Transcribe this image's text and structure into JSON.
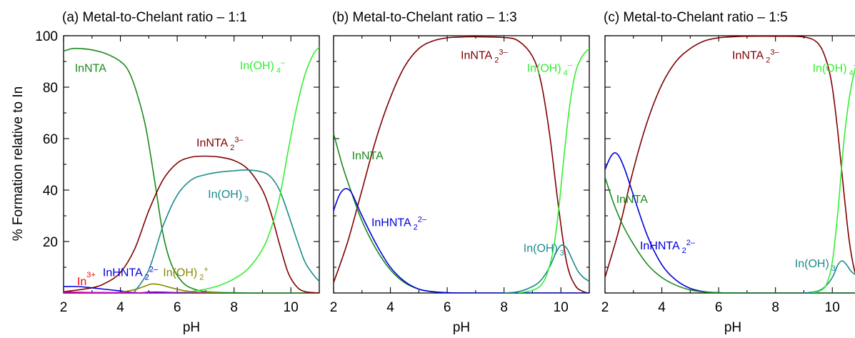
{
  "figure": {
    "ylabel": "% Formation relative to In"
  },
  "chart_data": [
    {
      "type": "line",
      "title": "(a) Metal-to-Chelant ratio – 1:1",
      "xlabel": "pH",
      "ylabel": "% Formation relative to In",
      "xlim": [
        2,
        11
      ],
      "ylim": [
        0,
        100
      ],
      "xticks": [
        2,
        4,
        6,
        8,
        10
      ],
      "yticks": [
        20,
        40,
        60,
        80,
        100
      ],
      "grid": false,
      "series": [
        {
          "name": "InNTA",
          "color": "#1a8a1a",
          "x": [
            2.0,
            2.3,
            2.6,
            3.0,
            3.5,
            4.0,
            4.3,
            4.6,
            4.9,
            5.2,
            5.5,
            5.8,
            6.2,
            6.6,
            7.0,
            7.5,
            8.0,
            8.5,
            9.0,
            10.0,
            11.0
          ],
          "y": [
            94,
            95,
            95,
            94.5,
            93,
            90,
            86,
            77,
            64,
            44,
            23,
            11,
            4,
            1.5,
            0.5,
            0.2,
            0.1,
            0,
            0,
            0,
            0
          ]
        },
        {
          "name": "InNTA₂³⁻",
          "color": "#800000",
          "x": [
            2.0,
            3.0,
            3.5,
            4.0,
            4.5,
            5.0,
            5.5,
            6.0,
            6.5,
            7.0,
            7.5,
            8.0,
            8.5,
            9.0,
            9.3,
            9.6,
            9.9,
            10.2,
            10.5,
            11.0
          ],
          "y": [
            0.5,
            2,
            4,
            8,
            17,
            32,
            44,
            50.5,
            52.8,
            53.2,
            52.8,
            51.5,
            48,
            40,
            31,
            19,
            8,
            2.5,
            0.5,
            0
          ]
        },
        {
          "name": "In(OH)₃",
          "color": "#1a8a8a",
          "x": [
            4.5,
            5.0,
            5.5,
            6.0,
            6.5,
            7.0,
            7.5,
            8.0,
            8.5,
            9.0,
            9.3,
            9.6,
            9.9,
            10.2,
            10.5,
            10.8,
            11.0
          ],
          "y": [
            0.5,
            9,
            26,
            38,
            44,
            46,
            47,
            47.5,
            47.8,
            47,
            45,
            40,
            31,
            21,
            12,
            7,
            4.5
          ]
        },
        {
          "name": "In(OH)₄⁻",
          "color": "#33ee33",
          "x": [
            5.5,
            6.0,
            6.5,
            7.0,
            7.5,
            8.0,
            8.5,
            9.0,
            9.3,
            9.6,
            9.9,
            10.2,
            10.5,
            10.8,
            11.0
          ],
          "y": [
            0,
            0.2,
            0.6,
            1.5,
            3,
            5.5,
            9.5,
            17,
            25,
            37,
            55,
            72,
            85,
            93,
            95.5
          ]
        },
        {
          "name": "In³⁺",
          "color": "#ff0000",
          "x": [
            2.0,
            2.5,
            3.0,
            3.5,
            4.0,
            4.5,
            5.0
          ],
          "y": [
            0.5,
            0.3,
            0.2,
            0.1,
            0,
            0,
            0
          ]
        },
        {
          "name": "InHNTA₂²⁻",
          "color": "#0000dd",
          "x": [
            2.0,
            2.5,
            3.0,
            3.5,
            4.0,
            4.3,
            4.7,
            5.0,
            5.5,
            6.0,
            6.5,
            7.0
          ],
          "y": [
            2.5,
            2.5,
            2.0,
            1.4,
            0.8,
            0.3,
            0.05,
            0.3,
            0.3,
            0.1,
            0,
            0
          ]
        },
        {
          "name": "In(OH)₂⁺",
          "color": "#888800",
          "x": [
            3.5,
            4.0,
            4.5,
            4.8,
            5.1,
            5.4,
            5.8,
            6.2,
            6.6,
            7.0,
            7.5
          ],
          "y": [
            0,
            0.3,
            1.3,
            2.4,
            3.5,
            3.2,
            2.0,
            1.0,
            0.4,
            0.1,
            0
          ]
        },
        {
          "name": "",
          "color": "#cc00cc",
          "x": [
            2.0,
            3.0,
            4.0,
            5.0,
            6.0,
            7.0
          ],
          "y": [
            0.3,
            0.2,
            0.1,
            0.05,
            0,
            0
          ]
        }
      ],
      "annotations": [
        {
          "series": "InNTA",
          "color": "#1a8a1a",
          "parts": [
            [
              "InNTA",
              ""
            ]
          ],
          "x": 2.95,
          "y": 86
        },
        {
          "series": "In(OH)₄⁻",
          "color": "#33ee33",
          "parts": [
            [
              "In(OH)",
              ""
            ],
            [
              "4",
              "sub"
            ],
            [
              "–",
              "sup"
            ]
          ],
          "x": 9.0,
          "y": 87
        },
        {
          "series": "InNTA₂³⁻",
          "color": "#800000",
          "parts": [
            [
              "InNTA",
              ""
            ],
            [
              "2",
              "sub"
            ],
            [
              "3–",
              "sup"
            ]
          ],
          "x": 7.5,
          "y": 57
        },
        {
          "series": "In(OH)₃",
          "color": "#1a8a8a",
          "parts": [
            [
              "In(OH)",
              ""
            ],
            [
              "3",
              "sub"
            ]
          ],
          "x": 7.8,
          "y": 37
        },
        {
          "series": "In³⁺",
          "color": "#ff0000",
          "parts": [
            [
              "In",
              ""
            ],
            [
              "3+",
              "sup"
            ]
          ],
          "x": 2.8,
          "y": 3
        },
        {
          "series": "InHNTA₂²⁻",
          "color": "#0000dd",
          "parts": [
            [
              "InHNTA",
              ""
            ],
            [
              "2",
              "sub"
            ],
            [
              "2–",
              "sup"
            ]
          ],
          "x": 4.35,
          "y": 6.5
        },
        {
          "series": "In(OH)₂⁺",
          "color": "#888800",
          "parts": [
            [
              "In(OH)",
              ""
            ],
            [
              "2",
              "sub"
            ],
            [
              "+",
              "sup"
            ]
          ],
          "x": 6.3,
          "y": 6.5
        }
      ]
    },
    {
      "type": "line",
      "title": "(b) Metal-to-Chelant ratio – 1:3",
      "xlabel": "pH",
      "ylabel": "",
      "xlim": [
        2,
        11
      ],
      "ylim": [
        0,
        100
      ],
      "xticks": [
        2,
        4,
        6,
        8,
        10
      ],
      "yticks": [
        20,
        40,
        60,
        80,
        100
      ],
      "grid": false,
      "series": [
        {
          "name": "InNTA₂³⁻",
          "color": "#800000",
          "x": [
            2.0,
            2.5,
            3.0,
            3.5,
            4.0,
            4.5,
            5.0,
            5.5,
            6.0,
            6.5,
            7.0,
            8.0,
            8.5,
            9.0,
            9.3,
            9.6,
            9.9,
            10.2,
            10.5,
            10.8,
            11.0
          ],
          "y": [
            4,
            20,
            40,
            60,
            76,
            88,
            95,
            98,
            99.2,
            99.5,
            99.6,
            99.3,
            98,
            92,
            82,
            62,
            35,
            12,
            3,
            0.5,
            0
          ]
        },
        {
          "name": "InNTA",
          "color": "#1a8a1a",
          "x": [
            2.0,
            2.3,
            2.6,
            3.0,
            3.5,
            4.0,
            4.5,
            5.0,
            5.5,
            6.0,
            7.0,
            11.0
          ],
          "y": [
            62,
            50,
            40,
            28,
            17,
            9,
            4,
            1.5,
            0.5,
            0.1,
            0,
            0
          ]
        },
        {
          "name": "InHNTA₂²⁻",
          "color": "#0000dd",
          "x": [
            2.0,
            2.2,
            2.4,
            2.6,
            2.8,
            3.0,
            3.5,
            4.0,
            4.5,
            5.0,
            5.5,
            6.0,
            7.0,
            11.0
          ],
          "y": [
            32,
            38,
            40.5,
            39.5,
            35,
            30,
            19,
            10,
            4.5,
            1.5,
            0.5,
            0.1,
            0,
            0
          ]
        },
        {
          "name": "In(OH)₃",
          "color": "#1a8a8a",
          "x": [
            8.0,
            8.5,
            9.0,
            9.3,
            9.6,
            9.8,
            10.0,
            10.2,
            10.4,
            10.6,
            10.8,
            11.0
          ],
          "y": [
            0,
            0.5,
            2.5,
            5,
            10,
            15,
            18.5,
            17.5,
            13,
            8.5,
            6,
            4.5
          ]
        },
        {
          "name": "In(OH)₄⁻",
          "color": "#33ee33",
          "x": [
            8.5,
            9.0,
            9.3,
            9.5,
            9.7,
            9.9,
            10.1,
            10.3,
            10.5,
            10.7,
            10.9,
            11.0
          ],
          "y": [
            0,
            1,
            3,
            7,
            15,
            30,
            52,
            72,
            85,
            91,
            94,
            95
          ]
        }
      ],
      "annotations": [
        {
          "series": "InNTA₂³⁻",
          "color": "#800000",
          "parts": [
            [
              "InNTA",
              ""
            ],
            [
              "2",
              "sub"
            ],
            [
              "3–",
              "sup"
            ]
          ],
          "x": 7.3,
          "y": 91
        },
        {
          "series": "In(OH)₄⁻",
          "color": "#33ee33",
          "parts": [
            [
              "In(OH)",
              ""
            ],
            [
              "4",
              "sub"
            ],
            [
              "–",
              "sup"
            ]
          ],
          "x": 9.6,
          "y": 86
        },
        {
          "series": "InNTA",
          "color": "#1a8a1a",
          "parts": [
            [
              "InNTA",
              ""
            ]
          ],
          "x": 3.2,
          "y": 52
        },
        {
          "series": "InHNTA₂²⁻",
          "color": "#0000dd",
          "parts": [
            [
              "InHNTA",
              ""
            ],
            [
              "2",
              "sub"
            ],
            [
              "2–",
              "sup"
            ]
          ],
          "x": 4.3,
          "y": 26
        },
        {
          "series": "In(OH)₃",
          "color": "#1a8a8a",
          "parts": [
            [
              "In(OH)",
              ""
            ],
            [
              "3",
              "sub"
            ]
          ],
          "x": 9.4,
          "y": 16
        }
      ]
    },
    {
      "type": "line",
      "title": "(c) Metal-to-Chelant ratio – 1:5",
      "xlabel": "pH",
      "ylabel": "",
      "xlim": [
        2,
        11
      ],
      "ylim": [
        0,
        100
      ],
      "xticks": [
        2,
        4,
        6,
        8,
        10
      ],
      "yticks": [
        20,
        40,
        60,
        80,
        100
      ],
      "grid": false,
      "series": [
        {
          "name": "InNTA₂³⁻",
          "color": "#800000",
          "x": [
            2.0,
            2.5,
            3.0,
            3.5,
            4.0,
            4.5,
            5.0,
            5.5,
            6.0,
            6.5,
            7.0,
            8.0,
            9.0,
            9.5,
            9.8,
            10.0,
            10.2,
            10.4,
            10.6,
            10.8,
            11.0
          ],
          "y": [
            6,
            25,
            48,
            67,
            81,
            90,
            95,
            98,
            99.2,
            99.6,
            99.8,
            99.8,
            99.5,
            97,
            90,
            80,
            62,
            40,
            20,
            8,
            3
          ]
        },
        {
          "name": "InHNTA₂²⁻",
          "color": "#0000dd",
          "x": [
            2.0,
            2.2,
            2.35,
            2.5,
            2.7,
            3.0,
            3.5,
            4.0,
            4.5,
            5.0,
            5.5,
            6.0,
            7.0,
            11.0
          ],
          "y": [
            48,
            53,
            54.5,
            53,
            48,
            38,
            22,
            11,
            5,
            1.8,
            0.5,
            0.1,
            0,
            0
          ]
        },
        {
          "name": "InNTA",
          "color": "#1a8a1a",
          "x": [
            2.0,
            2.3,
            2.6,
            3.0,
            3.5,
            4.0,
            4.5,
            5.0,
            5.5,
            6.0,
            7.0,
            11.0
          ],
          "y": [
            45,
            35,
            27,
            19,
            11,
            6,
            3,
            1.2,
            0.4,
            0.1,
            0,
            0
          ]
        },
        {
          "name": "In(OH)₃",
          "color": "#1a8a8a",
          "x": [
            9.0,
            9.4,
            9.7,
            10.0,
            10.2,
            10.35,
            10.5,
            10.7,
            11.0
          ],
          "y": [
            0,
            0.5,
            2,
            6,
            11,
            12.5,
            11,
            8,
            6
          ]
        },
        {
          "name": "In(OH)₄⁻",
          "color": "#33ee33",
          "x": [
            9.3,
            9.6,
            9.8,
            10.0,
            10.2,
            10.4,
            10.6,
            10.8,
            11.0
          ],
          "y": [
            0,
            1,
            3.5,
            12,
            32,
            58,
            76,
            87,
            93
          ]
        }
      ],
      "annotations": [
        {
          "series": "InNTA₂³⁻",
          "color": "#800000",
          "parts": [
            [
              "InNTA",
              ""
            ],
            [
              "2",
              "sub"
            ],
            [
              "3–",
              "sup"
            ]
          ],
          "x": 7.3,
          "y": 91
        },
        {
          "series": "In(OH)₄⁻",
          "color": "#33ee33",
          "parts": [
            [
              "In(OH)",
              ""
            ],
            [
              "4",
              "sub"
            ],
            [
              "–",
              "sup"
            ]
          ],
          "x": 10.1,
          "y": 86
        },
        {
          "series": "InNTA",
          "color": "#1a8a1a",
          "parts": [
            [
              "InNTA",
              ""
            ]
          ],
          "x": 2.95,
          "y": 35
        },
        {
          "series": "InHNTA₂²⁻",
          "color": "#0000dd",
          "parts": [
            [
              "InHNTA",
              ""
            ],
            [
              "2",
              "sub"
            ],
            [
              "2–",
              "sup"
            ]
          ],
          "x": 4.2,
          "y": 17
        },
        {
          "series": "In(OH)₃",
          "color": "#1a8a8a",
          "parts": [
            [
              "In(OH)",
              ""
            ],
            [
              "3",
              "sub"
            ]
          ],
          "x": 9.4,
          "y": 10
        }
      ]
    }
  ]
}
